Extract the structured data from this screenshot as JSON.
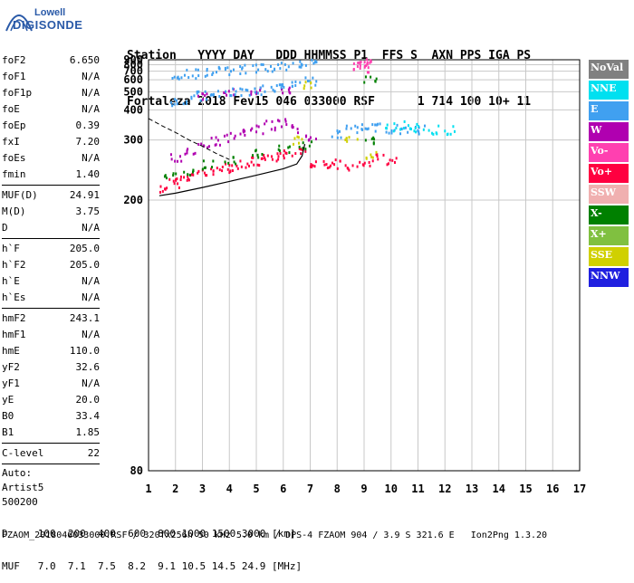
{
  "logo": {
    "brand_top": "Lowell",
    "brand_bottom": "DIGISONDE"
  },
  "header": {
    "line1": "Station   YYYY DAY   DDD HHMMSS P1  FFS S  AXN PPS IGA PS",
    "line2": "Fortaleza 2018 Fev15 046 033000 RSF      1 714 100 10+ 11"
  },
  "params": [
    {
      "label": "foF2",
      "value": "6.650"
    },
    {
      "label": "foF1",
      "value": "N/A"
    },
    {
      "label": "foF1p",
      "value": "N/A"
    },
    {
      "label": "foE",
      "value": "N/A"
    },
    {
      "label": "foEp",
      "value": "0.39"
    },
    {
      "label": "fxI",
      "value": "7.20"
    },
    {
      "label": "foEs",
      "value": "N/A"
    },
    {
      "label": "fmin",
      "value": "1.40"
    },
    {
      "sep": true
    },
    {
      "label": "MUF(D)",
      "value": "24.91"
    },
    {
      "label": "M(D)",
      "value": "3.75"
    },
    {
      "label": "D",
      "value": "N/A"
    },
    {
      "sep": true
    },
    {
      "label": "h`F",
      "value": "205.0"
    },
    {
      "label": "h`F2",
      "value": "205.0"
    },
    {
      "label": "h`E",
      "value": "N/A"
    },
    {
      "label": "h`Es",
      "value": "N/A"
    },
    {
      "sep": true
    },
    {
      "label": "hmF2",
      "value": "243.1"
    },
    {
      "label": "hmF1",
      "value": "N/A"
    },
    {
      "label": "hmE",
      "value": "110.0"
    },
    {
      "label": "yF2",
      "value": "32.6"
    },
    {
      "label": "yF1",
      "value": "N/A"
    },
    {
      "label": "yE",
      "value": "20.0"
    },
    {
      "label": "B0",
      "value": "33.4"
    },
    {
      "label": "B1",
      "value": "1.85"
    },
    {
      "sep": true
    },
    {
      "label": "C-level",
      "value": "22"
    },
    {
      "sep": true
    },
    {
      "text": "Auto:"
    },
    {
      "text": "Artist5"
    },
    {
      "text": "500200"
    }
  ],
  "legend": [
    {
      "label": "NoVal",
      "color": "#808080"
    },
    {
      "label": "NNE",
      "color": "#00e0f0"
    },
    {
      "label": "E",
      "color": "#40a0f0"
    },
    {
      "label": "W",
      "color": "#b000b0"
    },
    {
      "label": "Vo-",
      "color": "#ff40b0"
    },
    {
      "label": "Vo+",
      "color": "#ff0040"
    },
    {
      "label": "SSW",
      "color": "#f0b0b0"
    },
    {
      "label": "X-",
      "color": "#008000"
    },
    {
      "label": "X+",
      "color": "#80c040"
    },
    {
      "label": "SSE",
      "color": "#d0d000"
    },
    {
      "label": "NNW",
      "color": "#2020e0"
    }
  ],
  "footer": {
    "line1": "D     100  200  400  600  800 1000 1500 3000 [km]",
    "line2": "MUF   7.0  7.1  7.5  8.2  9.1 10.5 14.5 24.9 [MHz]",
    "line3": "FZAOM_2018046033000.RSF / 320fx256h 50 kHz 5.0 km / DPS-4 FZAOM 904 / 3.9 S 321.6 E   Ion2Png 1.3.20"
  },
  "chart_data": {
    "type": "scatter",
    "title": "",
    "xlabel": "",
    "ylabel": "",
    "xlim": [
      1,
      17
    ],
    "ylim": [
      80,
      900
    ],
    "y_scale": "reciprocal",
    "xticks": [
      1,
      2,
      3,
      4,
      5,
      6,
      7,
      8,
      9,
      10,
      11,
      12,
      13,
      14,
      15,
      16,
      17
    ],
    "yticks": [
      80,
      200,
      300,
      400,
      500,
      600,
      700,
      800,
      900
    ],
    "grid": true,
    "legend_placement": "right",
    "series": [
      {
        "name": "Vo+",
        "color": "#ff0040",
        "points": [
          [
            1.6,
            215
          ],
          [
            1.9,
            222
          ],
          [
            2.2,
            228
          ],
          [
            2.6,
            232
          ],
          [
            3.0,
            236
          ],
          [
            3.4,
            240
          ],
          [
            3.8,
            245
          ],
          [
            4.2,
            248
          ],
          [
            4.6,
            252
          ],
          [
            5.0,
            256
          ],
          [
            5.4,
            260
          ],
          [
            5.8,
            265
          ],
          [
            6.2,
            270
          ],
          [
            6.6,
            280
          ],
          [
            7.0,
            255
          ],
          [
            7.5,
            250
          ],
          [
            8.0,
            252
          ],
          [
            8.5,
            248
          ],
          [
            9.0,
            250
          ],
          [
            9.5,
            262
          ],
          [
            10.0,
            255
          ]
        ]
      },
      {
        "name": "W",
        "color": "#b000b0",
        "points": [
          [
            2.0,
            265
          ],
          [
            2.5,
            275
          ],
          [
            3.0,
            290
          ],
          [
            3.5,
            300
          ],
          [
            4.0,
            310
          ],
          [
            4.5,
            320
          ],
          [
            5.0,
            330
          ],
          [
            5.5,
            345
          ],
          [
            6.0,
            355
          ],
          [
            6.5,
            335
          ],
          [
            7.0,
            310
          ],
          [
            3.0,
            480
          ],
          [
            4.0,
            500
          ],
          [
            5.0,
            510
          ],
          [
            6.0,
            520
          ]
        ]
      },
      {
        "name": "E",
        "color": "#40a0f0",
        "points": [
          [
            2.0,
            440
          ],
          [
            2.5,
            460
          ],
          [
            3.0,
            480
          ],
          [
            3.5,
            490
          ],
          [
            4.0,
            500
          ],
          [
            4.5,
            510
          ],
          [
            5.0,
            520
          ],
          [
            5.5,
            530
          ],
          [
            6.0,
            540
          ],
          [
            6.5,
            560
          ],
          [
            7.0,
            600
          ],
          [
            2.0,
            660
          ],
          [
            2.5,
            680
          ],
          [
            3.0,
            700
          ],
          [
            3.5,
            710
          ],
          [
            4.0,
            720
          ],
          [
            4.5,
            740
          ],
          [
            5.0,
            760
          ],
          [
            5.5,
            780
          ],
          [
            6.0,
            800
          ],
          [
            6.5,
            820
          ],
          [
            7.0,
            860
          ],
          [
            8.0,
            320
          ],
          [
            8.5,
            330
          ],
          [
            9.0,
            335
          ],
          [
            9.5,
            340
          ],
          [
            10.0,
            335
          ],
          [
            10.5,
            330
          ],
          [
            11.0,
            330
          ]
        ]
      },
      {
        "name": "NNE",
        "color": "#00e0f0",
        "points": [
          [
            10.0,
            340
          ],
          [
            10.5,
            345
          ],
          [
            11.0,
            335
          ],
          [
            11.5,
            330
          ],
          [
            12.2,
            330
          ]
        ]
      },
      {
        "name": "X-",
        "color": "#008000",
        "points": [
          [
            1.8,
            230
          ],
          [
            2.4,
            240
          ],
          [
            3.2,
            250
          ],
          [
            4.0,
            260
          ],
          [
            5.0,
            270
          ],
          [
            6.0,
            280
          ],
          [
            6.8,
            290
          ],
          [
            9.2,
            620
          ],
          [
            9.2,
            300
          ]
        ]
      },
      {
        "name": "SSE",
        "color": "#d0d000",
        "points": [
          [
            6.8,
            560
          ],
          [
            6.5,
            300
          ],
          [
            8.5,
            300
          ],
          [
            9.2,
            270
          ]
        ]
      },
      {
        "name": "Vo-",
        "color": "#ff40b0",
        "points": [
          [
            9.0,
            880
          ],
          [
            9.0,
            800
          ],
          [
            9.0,
            760
          ],
          [
            8.6,
            780
          ]
        ]
      }
    ],
    "trace": [
      [
        1.4,
        205
      ],
      [
        2.0,
        208
      ],
      [
        3.0,
        215
      ],
      [
        4.0,
        223
      ],
      [
        5.0,
        232
      ],
      [
        6.0,
        242
      ],
      [
        6.5,
        250
      ],
      [
        6.7,
        265
      ],
      [
        6.8,
        290
      ]
    ],
    "dashed_trace": [
      [
        1.0,
        365
      ],
      [
        1.5,
        340
      ],
      [
        2.0,
        320
      ],
      [
        2.5,
        300
      ],
      [
        3.0,
        285
      ],
      [
        3.5,
        270
      ],
      [
        4.0,
        258
      ]
    ]
  }
}
